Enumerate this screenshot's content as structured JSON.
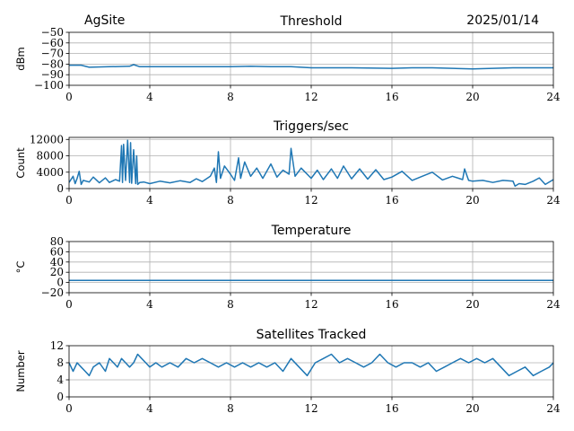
{
  "header": {
    "site": "AgSite",
    "date": "2025/01/14"
  },
  "colors": {
    "series": "#1f77b4",
    "grid": "#b0b0b0",
    "axes": "#000000"
  },
  "chart_data": [
    {
      "id": "threshold",
      "type": "line",
      "title": "Threshold",
      "ylabel": "dBm",
      "xlim": [
        0,
        24
      ],
      "ylim": [
        -100,
        -50
      ],
      "xticks": [
        "0",
        "4",
        "8",
        "12",
        "16",
        "20",
        "24"
      ],
      "yticks": [
        "−50",
        "−60",
        "−70",
        "−80",
        "−90",
        "−100"
      ],
      "ytick_values": [
        -50,
        -60,
        -70,
        -80,
        -90,
        -100
      ],
      "grid": true,
      "x": [
        0,
        0.6,
        1,
        2,
        3,
        3.2,
        3.5,
        4,
        6,
        8,
        9,
        10,
        11,
        12,
        14,
        16,
        17,
        18,
        19,
        20,
        21,
        22,
        23,
        24
      ],
      "y": [
        -81,
        -81,
        -83,
        -82.5,
        -82,
        -80.5,
        -82.5,
        -82.5,
        -82.5,
        -82.5,
        -82,
        -82.5,
        -82.5,
        -83.5,
        -83.5,
        -84,
        -83.5,
        -83.5,
        -84,
        -84.5,
        -84,
        -83.5,
        -83.5,
        -83.5
      ]
    },
    {
      "id": "triggers",
      "type": "line",
      "title": "Triggers/sec",
      "ylabel": "Count",
      "xlim": [
        0,
        24
      ],
      "ylim": [
        0,
        12500
      ],
      "xticks": [
        "0",
        "4",
        "8",
        "12",
        "16",
        "20",
        "24"
      ],
      "yticks": [
        "12000",
        "8000",
        "4000",
        "0"
      ],
      "ytick_values": [
        12000,
        8000,
        4000,
        0
      ],
      "grid": true,
      "x": [
        0,
        0.2,
        0.3,
        0.4,
        0.5,
        0.6,
        0.7,
        1.0,
        1.2,
        1.5,
        1.8,
        2.0,
        2.3,
        2.5,
        2.6,
        2.65,
        2.7,
        2.8,
        2.9,
        3.0,
        3.05,
        3.1,
        3.2,
        3.3,
        3.35,
        3.4,
        3.5,
        3.7,
        4.0,
        4.5,
        5.0,
        5.5,
        6.0,
        6.3,
        6.6,
        7.0,
        7.2,
        7.3,
        7.4,
        7.5,
        7.7,
        8.0,
        8.2,
        8.4,
        8.5,
        8.7,
        9.0,
        9.3,
        9.6,
        10.0,
        10.3,
        10.6,
        10.9,
        11.0,
        11.2,
        11.5,
        12.0,
        12.3,
        12.6,
        13.0,
        13.3,
        13.6,
        14.0,
        14.4,
        14.8,
        15.2,
        15.6,
        16.0,
        16.5,
        17.0,
        17.5,
        18.0,
        18.5,
        19.0,
        19.5,
        19.6,
        19.8,
        20.0,
        20.5,
        21.0,
        21.5,
        22.0,
        22.1,
        22.3,
        22.6,
        23.0,
        23.3,
        23.6,
        24.0
      ],
      "y": [
        1500,
        3000,
        1200,
        2500,
        4200,
        1000,
        2000,
        1600,
        2800,
        1400,
        2600,
        1500,
        2200,
        1800,
        10500,
        1500,
        10800,
        2000,
        11800,
        1500,
        11200,
        1300,
        9500,
        1200,
        8000,
        1000,
        1500,
        1600,
        1200,
        1800,
        1400,
        1900,
        1500,
        2400,
        1700,
        3000,
        5000,
        1500,
        9000,
        2500,
        5500,
        3500,
        2000,
        7500,
        2500,
        6500,
        3000,
        5000,
        2500,
        6000,
        2800,
        4500,
        3500,
        9800,
        3000,
        5000,
        2500,
        4500,
        2200,
        4800,
        2500,
        5500,
        2400,
        4800,
        2300,
        4600,
        2200,
        2800,
        4200,
        2000,
        3000,
        4000,
        2100,
        3000,
        2200,
        4800,
        2000,
        1800,
        2000,
        1500,
        2000,
        1800,
        600,
        1200,
        1000,
        1800,
        2600,
        1000,
        2200
      ]
    },
    {
      "id": "temperature",
      "type": "line",
      "title": "Temperature",
      "ylabel": "°C",
      "xlim": [
        0,
        24
      ],
      "ylim": [
        -20,
        80
      ],
      "xticks": [
        "0",
        "4",
        "8",
        "12",
        "16",
        "20",
        "24"
      ],
      "yticks": [
        "80",
        "60",
        "40",
        "20",
        "0",
        "−20"
      ],
      "ytick_values": [
        80,
        60,
        40,
        20,
        0,
        -20
      ],
      "grid": true,
      "x": [
        0,
        24
      ],
      "y": [
        4,
        4
      ]
    },
    {
      "id": "satellites",
      "type": "line",
      "title": "Satellites Tracked",
      "ylabel": "Number",
      "xlim": [
        0,
        24
      ],
      "ylim": [
        0,
        12
      ],
      "xticks": [
        "0",
        "4",
        "8",
        "12",
        "16",
        "20",
        "24"
      ],
      "yticks": [
        "12",
        "8",
        "4",
        "0"
      ],
      "ytick_values": [
        12,
        8,
        4,
        0
      ],
      "grid": true,
      "x": [
        0,
        0.2,
        0.4,
        0.6,
        0.8,
        1.0,
        1.2,
        1.5,
        1.8,
        2.0,
        2.2,
        2.4,
        2.6,
        2.8,
        3.0,
        3.2,
        3.4,
        3.6,
        3.8,
        4.0,
        4.3,
        4.6,
        5.0,
        5.4,
        5.8,
        6.2,
        6.6,
        7.0,
        7.4,
        7.8,
        8.2,
        8.6,
        9.0,
        9.4,
        9.8,
        10.2,
        10.6,
        11.0,
        11.4,
        11.8,
        12.2,
        12.6,
        13.0,
        13.4,
        13.8,
        14.2,
        14.6,
        15.0,
        15.4,
        15.8,
        16.2,
        16.6,
        17.0,
        17.4,
        17.8,
        18.2,
        18.6,
        19.0,
        19.4,
        19.8,
        20.2,
        20.6,
        21.0,
        21.4,
        21.8,
        22.2,
        22.6,
        23.0,
        23.4,
        23.8,
        24.0
      ],
      "y": [
        8,
        6,
        8,
        7,
        6,
        5,
        7,
        8,
        6,
        9,
        8,
        7,
        9,
        8,
        7,
        8,
        10,
        9,
        8,
        7,
        8,
        7,
        8,
        7,
        9,
        8,
        9,
        8,
        7,
        8,
        7,
        8,
        7,
        8,
        7,
        8,
        6,
        9,
        7,
        5,
        8,
        9,
        10,
        8,
        9,
        8,
        7,
        8,
        10,
        8,
        7,
        8,
        8,
        7,
        8,
        6,
        7,
        8,
        9,
        8,
        9,
        8,
        9,
        7,
        5,
        6,
        7,
        5,
        6,
        7,
        8
      ]
    }
  ]
}
